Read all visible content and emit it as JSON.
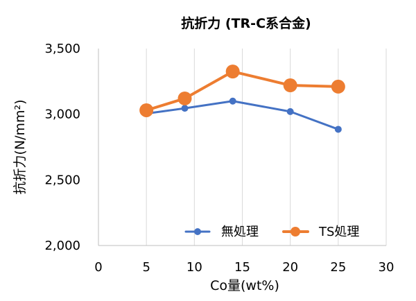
{
  "chart_data": {
    "type": "line",
    "title": "抗折力 (TR-C系合金)",
    "xlabel": "Co量(wt%)",
    "ylabel": "抗折力(N/mm²)",
    "xlim": [
      0,
      30
    ],
    "ylim": [
      2000,
      3500
    ],
    "x_ticks": [
      "0",
      "5",
      "10",
      "15",
      "20",
      "25",
      "30"
    ],
    "x_tick_values": [
      0,
      5,
      10,
      15,
      20,
      25,
      30
    ],
    "y_ticks": [
      "2,000",
      "2,500",
      "3,000",
      "3,500"
    ],
    "y_tick_values": [
      2000,
      2500,
      3000,
      3500
    ],
    "grid": "vertical",
    "legend_position": "bottom-right",
    "series": [
      {
        "name": "無処理",
        "color": "#4472C4",
        "x": [
          5,
          9,
          14,
          20,
          25
        ],
        "y": [
          3005,
          3045,
          3100,
          3020,
          2885
        ]
      },
      {
        "name": "TS処理",
        "color": "#ED7D31",
        "x": [
          5,
          9,
          14,
          20,
          25
        ],
        "y": [
          3030,
          3120,
          3325,
          3220,
          3210
        ]
      }
    ]
  }
}
